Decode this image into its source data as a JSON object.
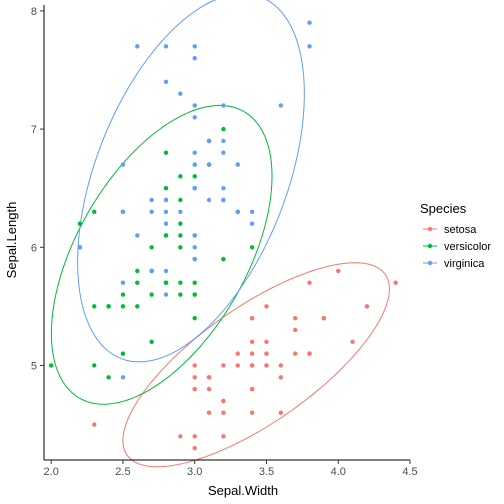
{
  "chart_data": {
    "type": "scatter",
    "title": "",
    "xlabel": "Sepal.Width",
    "ylabel": "Sepal.Length",
    "xlim": [
      1.95,
      4.5
    ],
    "ylim": [
      4.2,
      8.05
    ],
    "x_ticks": [
      2.0,
      2.5,
      3.0,
      3.5,
      4.0,
      4.5
    ],
    "x_tick_labels": [
      "2.0",
      "2.5",
      "3.0",
      "3.5",
      "4.0",
      "4.5"
    ],
    "y_ticks": [
      5,
      6,
      7,
      8
    ],
    "y_tick_labels": [
      "5",
      "6",
      "7",
      "8"
    ],
    "grid": false,
    "legend": {
      "title": "Species",
      "position": "right"
    },
    "series": [
      {
        "name": "setosa",
        "color": "#F8766D",
        "points": [
          [
            3.5,
            5.1
          ],
          [
            3.0,
            4.9
          ],
          [
            3.2,
            4.7
          ],
          [
            3.1,
            4.6
          ],
          [
            3.6,
            5.0
          ],
          [
            3.9,
            5.4
          ],
          [
            3.4,
            4.6
          ],
          [
            3.4,
            5.0
          ],
          [
            2.9,
            4.4
          ],
          [
            3.1,
            4.9
          ],
          [
            3.7,
            5.4
          ],
          [
            3.4,
            4.8
          ],
          [
            3.0,
            4.8
          ],
          [
            3.0,
            4.3
          ],
          [
            4.0,
            5.8
          ],
          [
            4.4,
            5.7
          ],
          [
            3.9,
            5.4
          ],
          [
            3.5,
            5.1
          ],
          [
            3.8,
            5.7
          ],
          [
            3.8,
            5.1
          ],
          [
            3.4,
            5.4
          ],
          [
            3.7,
            5.1
          ],
          [
            3.6,
            4.6
          ],
          [
            3.3,
            5.1
          ],
          [
            3.4,
            4.8
          ],
          [
            3.0,
            5.0
          ],
          [
            3.4,
            5.0
          ],
          [
            3.5,
            5.2
          ],
          [
            3.4,
            5.2
          ],
          [
            3.2,
            4.7
          ],
          [
            3.1,
            4.8
          ],
          [
            3.4,
            5.4
          ],
          [
            4.1,
            5.2
          ],
          [
            4.2,
            5.5
          ],
          [
            3.1,
            4.9
          ],
          [
            3.2,
            5.0
          ],
          [
            3.5,
            5.5
          ],
          [
            3.6,
            4.9
          ],
          [
            3.0,
            4.4
          ],
          [
            3.4,
            5.1
          ],
          [
            3.5,
            5.0
          ],
          [
            2.3,
            4.5
          ],
          [
            3.2,
            4.4
          ],
          [
            3.5,
            5.0
          ],
          [
            3.8,
            5.1
          ],
          [
            3.0,
            4.8
          ],
          [
            3.8,
            5.1
          ],
          [
            3.2,
            4.6
          ],
          [
            3.7,
            5.3
          ],
          [
            3.3,
            5.0
          ]
        ]
      },
      {
        "name": "versicolor",
        "color": "#00BA38",
        "points": [
          [
            3.2,
            7.0
          ],
          [
            3.2,
            6.4
          ],
          [
            3.1,
            6.9
          ],
          [
            2.3,
            5.5
          ],
          [
            2.8,
            6.5
          ],
          [
            2.8,
            5.7
          ],
          [
            3.3,
            6.3
          ],
          [
            2.4,
            4.9
          ],
          [
            2.9,
            6.6
          ],
          [
            2.7,
            5.2
          ],
          [
            2.0,
            5.0
          ],
          [
            3.0,
            5.9
          ],
          [
            2.2,
            6.0
          ],
          [
            2.9,
            6.1
          ],
          [
            2.9,
            5.6
          ],
          [
            3.1,
            6.7
          ],
          [
            3.0,
            5.6
          ],
          [
            2.7,
            5.8
          ],
          [
            2.2,
            6.2
          ],
          [
            2.5,
            5.6
          ],
          [
            3.2,
            5.9
          ],
          [
            2.8,
            6.1
          ],
          [
            2.5,
            6.3
          ],
          [
            2.8,
            6.1
          ],
          [
            2.9,
            6.4
          ],
          [
            3.0,
            6.6
          ],
          [
            2.8,
            6.8
          ],
          [
            3.0,
            6.7
          ],
          [
            2.9,
            6.0
          ],
          [
            2.6,
            5.7
          ],
          [
            2.4,
            5.5
          ],
          [
            2.4,
            5.5
          ],
          [
            2.7,
            5.8
          ],
          [
            2.7,
            6.0
          ],
          [
            3.0,
            5.4
          ],
          [
            3.4,
            6.0
          ],
          [
            3.1,
            6.7
          ],
          [
            2.3,
            6.3
          ],
          [
            3.0,
            5.6
          ],
          [
            2.5,
            5.5
          ],
          [
            2.6,
            5.5
          ],
          [
            3.0,
            6.1
          ],
          [
            2.6,
            5.8
          ],
          [
            2.3,
            5.0
          ],
          [
            2.7,
            5.6
          ],
          [
            3.0,
            5.7
          ],
          [
            2.9,
            5.7
          ],
          [
            2.9,
            6.2
          ],
          [
            2.5,
            5.1
          ],
          [
            2.8,
            5.7
          ]
        ]
      },
      {
        "name": "virginica",
        "color": "#619CFF",
        "points": [
          [
            3.3,
            6.3
          ],
          [
            2.7,
            5.8
          ],
          [
            3.0,
            7.1
          ],
          [
            2.9,
            6.3
          ],
          [
            3.0,
            6.5
          ],
          [
            3.0,
            7.6
          ],
          [
            2.5,
            4.9
          ],
          [
            2.9,
            7.3
          ],
          [
            2.5,
            6.7
          ],
          [
            3.6,
            7.2
          ],
          [
            3.2,
            6.5
          ],
          [
            2.7,
            6.4
          ],
          [
            3.0,
            6.8
          ],
          [
            2.5,
            5.7
          ],
          [
            2.8,
            5.8
          ],
          [
            3.2,
            6.4
          ],
          [
            3.0,
            6.5
          ],
          [
            3.8,
            7.7
          ],
          [
            2.6,
            7.7
          ],
          [
            2.2,
            6.0
          ],
          [
            3.2,
            6.9
          ],
          [
            2.8,
            5.6
          ],
          [
            2.8,
            7.7
          ],
          [
            2.7,
            6.3
          ],
          [
            3.3,
            6.7
          ],
          [
            3.2,
            7.2
          ],
          [
            2.8,
            6.2
          ],
          [
            3.0,
            6.1
          ],
          [
            2.8,
            6.4
          ],
          [
            3.0,
            7.2
          ],
          [
            2.8,
            7.4
          ],
          [
            3.8,
            7.9
          ],
          [
            2.8,
            6.4
          ],
          [
            2.8,
            6.3
          ],
          [
            2.6,
            6.1
          ],
          [
            3.0,
            7.7
          ],
          [
            3.4,
            6.3
          ],
          [
            3.1,
            6.4
          ],
          [
            3.0,
            6.0
          ],
          [
            3.1,
            6.9
          ],
          [
            3.1,
            6.7
          ],
          [
            3.1,
            6.9
          ],
          [
            2.7,
            5.8
          ],
          [
            3.2,
            6.8
          ],
          [
            3.3,
            6.7
          ],
          [
            3.0,
            6.7
          ],
          [
            2.5,
            6.3
          ],
          [
            3.0,
            6.5
          ],
          [
            3.4,
            6.2
          ],
          [
            3.0,
            5.9
          ]
        ]
      }
    ]
  }
}
